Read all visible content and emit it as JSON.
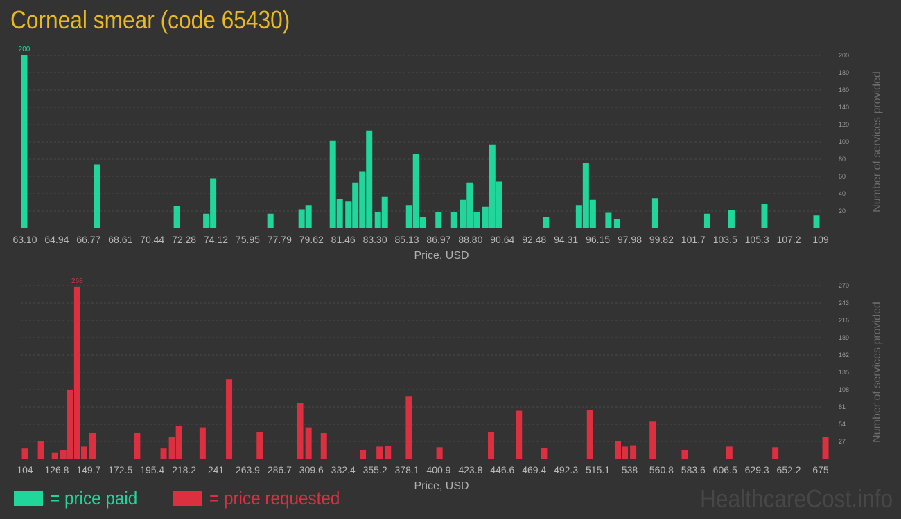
{
  "title": "Corneal smear (code 65430)",
  "legend": {
    "paid_label": "= price paid",
    "requested_label": "= price requested"
  },
  "watermark": "HealthcareCost.info",
  "colors": {
    "paid": "#21d69a",
    "requested": "#dc3040",
    "title": "#e8b923"
  },
  "chart_data": [
    {
      "type": "bar",
      "name": "paid",
      "xlabel": "Price, USD",
      "ylabel": "Number of services provided",
      "xlim": [
        63.1,
        109
      ],
      "ylim": [
        0,
        200
      ],
      "x_ticks": [
        "63.10",
        "64.94",
        "66.77",
        "68.61",
        "70.44",
        "72.28",
        "74.12",
        "75.95",
        "77.79",
        "79.62",
        "81.46",
        "83.30",
        "85.13",
        "86.97",
        "88.80",
        "90.64",
        "92.48",
        "94.31",
        "96.15",
        "97.98",
        "99.82",
        "101.7",
        "103.5",
        "105.3",
        "107.2",
        "109"
      ],
      "y_ticks": [
        20,
        40,
        60,
        80,
        100,
        120,
        140,
        160,
        180,
        200
      ],
      "peak_label": "200",
      "bars": [
        {
          "x": 63.1,
          "y": 200
        },
        {
          "x": 67.3,
          "y": 74
        },
        {
          "x": 71.9,
          "y": 26
        },
        {
          "x": 73.6,
          "y": 17
        },
        {
          "x": 74.0,
          "y": 58
        },
        {
          "x": 77.3,
          "y": 17
        },
        {
          "x": 79.1,
          "y": 22
        },
        {
          "x": 79.5,
          "y": 27
        },
        {
          "x": 80.9,
          "y": 101
        },
        {
          "x": 81.3,
          "y": 34
        },
        {
          "x": 81.8,
          "y": 31
        },
        {
          "x": 82.2,
          "y": 53
        },
        {
          "x": 82.6,
          "y": 66
        },
        {
          "x": 83.0,
          "y": 113
        },
        {
          "x": 83.5,
          "y": 19
        },
        {
          "x": 83.9,
          "y": 37
        },
        {
          "x": 85.3,
          "y": 27
        },
        {
          "x": 85.7,
          "y": 86
        },
        {
          "x": 86.1,
          "y": 13
        },
        {
          "x": 87.0,
          "y": 19
        },
        {
          "x": 87.9,
          "y": 19
        },
        {
          "x": 88.4,
          "y": 33
        },
        {
          "x": 88.8,
          "y": 53
        },
        {
          "x": 89.2,
          "y": 19
        },
        {
          "x": 89.7,
          "y": 25
        },
        {
          "x": 90.1,
          "y": 97
        },
        {
          "x": 90.5,
          "y": 54
        },
        {
          "x": 93.2,
          "y": 13
        },
        {
          "x": 95.1,
          "y": 27
        },
        {
          "x": 95.5,
          "y": 76
        },
        {
          "x": 95.9,
          "y": 33
        },
        {
          "x": 96.8,
          "y": 18
        },
        {
          "x": 97.3,
          "y": 11
        },
        {
          "x": 99.5,
          "y": 35
        },
        {
          "x": 102.5,
          "y": 17
        },
        {
          "x": 103.9,
          "y": 21
        },
        {
          "x": 105.8,
          "y": 28
        },
        {
          "x": 108.8,
          "y": 15
        }
      ]
    },
    {
      "type": "bar",
      "name": "requested",
      "xlabel": "Price, USD",
      "ylabel": "Number of services provided",
      "xlim": [
        104,
        675
      ],
      "ylim": [
        0,
        270
      ],
      "x_ticks": [
        "104",
        "126.8",
        "149.7",
        "172.5",
        "195.4",
        "218.2",
        "241",
        "263.9",
        "286.7",
        "309.6",
        "332.4",
        "355.2",
        "378.1",
        "400.9",
        "423.8",
        "446.6",
        "469.4",
        "492.3",
        "515.1",
        "538",
        "560.8",
        "583.6",
        "606.5",
        "629.3",
        "652.2",
        "675"
      ],
      "y_ticks": [
        27,
        54,
        81,
        108,
        135,
        162,
        189,
        216,
        243,
        270
      ],
      "peak_label": "268",
      "bars": [
        {
          "x": 104.5,
          "y": 16
        },
        {
          "x": 116,
          "y": 28
        },
        {
          "x": 126,
          "y": 10
        },
        {
          "x": 132,
          "y": 13
        },
        {
          "x": 137,
          "y": 107
        },
        {
          "x": 142,
          "y": 268
        },
        {
          "x": 147,
          "y": 19
        },
        {
          "x": 153,
          "y": 40
        },
        {
          "x": 185,
          "y": 40
        },
        {
          "x": 204,
          "y": 16
        },
        {
          "x": 210,
          "y": 34
        },
        {
          "x": 215,
          "y": 51
        },
        {
          "x": 232,
          "y": 49
        },
        {
          "x": 251,
          "y": 124
        },
        {
          "x": 273,
          "y": 42
        },
        {
          "x": 302,
          "y": 87
        },
        {
          "x": 308,
          "y": 49
        },
        {
          "x": 319,
          "y": 40
        },
        {
          "x": 347,
          "y": 13
        },
        {
          "x": 359,
          "y": 19
        },
        {
          "x": 365,
          "y": 20
        },
        {
          "x": 380,
          "y": 98
        },
        {
          "x": 402,
          "y": 18
        },
        {
          "x": 439,
          "y": 42
        },
        {
          "x": 459,
          "y": 75
        },
        {
          "x": 477,
          "y": 17
        },
        {
          "x": 510,
          "y": 76
        },
        {
          "x": 530,
          "y": 27
        },
        {
          "x": 535,
          "y": 19
        },
        {
          "x": 541,
          "y": 21
        },
        {
          "x": 555,
          "y": 58
        },
        {
          "x": 578,
          "y": 14
        },
        {
          "x": 610,
          "y": 19
        },
        {
          "x": 643,
          "y": 18
        },
        {
          "x": 679,
          "y": 34
        }
      ]
    }
  ]
}
